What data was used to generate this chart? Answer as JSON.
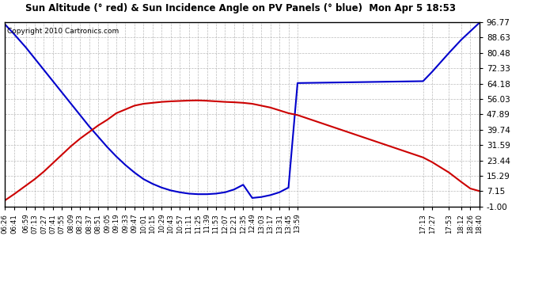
{
  "title": "Sun Altitude (° red) & Sun Incidence Angle on PV Panels (° blue)  Mon Apr 5 18:53",
  "copyright": "Copyright 2010 Cartronics.com",
  "yticks": [
    96.77,
    88.63,
    80.48,
    72.33,
    64.18,
    56.03,
    47.89,
    39.74,
    31.59,
    23.44,
    15.29,
    7.15,
    -1.0
  ],
  "ymin": -1.0,
  "ymax": 96.77,
  "bg_color": "#ffffff",
  "plot_bg": "#ffffff",
  "grid_color": "#aaaaaa",
  "red_color": "#cc0000",
  "blue_color": "#0000cc",
  "x_labels": [
    "06:26",
    "06:41",
    "06:59",
    "07:13",
    "07:27",
    "07:41",
    "07:55",
    "08:09",
    "08:23",
    "08:37",
    "08:51",
    "09:05",
    "09:19",
    "09:33",
    "09:47",
    "10:01",
    "10:15",
    "10:29",
    "10:43",
    "10:57",
    "11:11",
    "11:25",
    "11:39",
    "11:53",
    "12:07",
    "12:21",
    "12:35",
    "12:49",
    "13:03",
    "13:17",
    "13:31",
    "13:45",
    "13:59",
    "17:13",
    "17:27",
    "17:53",
    "18:12",
    "18:26",
    "18:40"
  ],
  "x_minutes": [
    386,
    401,
    419,
    433,
    447,
    461,
    475,
    489,
    503,
    517,
    531,
    545,
    559,
    573,
    587,
    601,
    615,
    629,
    643,
    657,
    671,
    685,
    699,
    713,
    727,
    741,
    755,
    769,
    783,
    797,
    811,
    825,
    839,
    1033,
    1047,
    1073,
    1092,
    1106,
    1120
  ],
  "red_y": [
    2.0,
    5.5,
    10.0,
    13.5,
    17.5,
    22.0,
    26.5,
    31.0,
    35.0,
    38.5,
    42.0,
    45.0,
    48.5,
    50.5,
    52.5,
    53.5,
    54.0,
    54.5,
    54.8,
    55.0,
    55.2,
    55.3,
    55.1,
    54.8,
    54.5,
    54.3,
    54.0,
    53.5,
    52.5,
    51.5,
    50.0,
    48.5,
    47.5,
    25.0,
    22.5,
    17.0,
    12.0,
    8.5,
    7.15
  ],
  "blue_y": [
    96.0,
    90.5,
    83.5,
    77.5,
    71.5,
    65.5,
    59.5,
    53.5,
    47.5,
    41.5,
    36.0,
    30.5,
    25.5,
    21.0,
    17.0,
    13.5,
    11.0,
    9.0,
    7.5,
    6.5,
    5.8,
    5.5,
    5.5,
    5.8,
    6.5,
    8.0,
    10.5,
    3.5,
    4.0,
    5.0,
    6.5,
    9.0,
    64.5,
    65.5,
    70.5,
    80.5,
    87.5,
    92.0,
    96.5
  ]
}
